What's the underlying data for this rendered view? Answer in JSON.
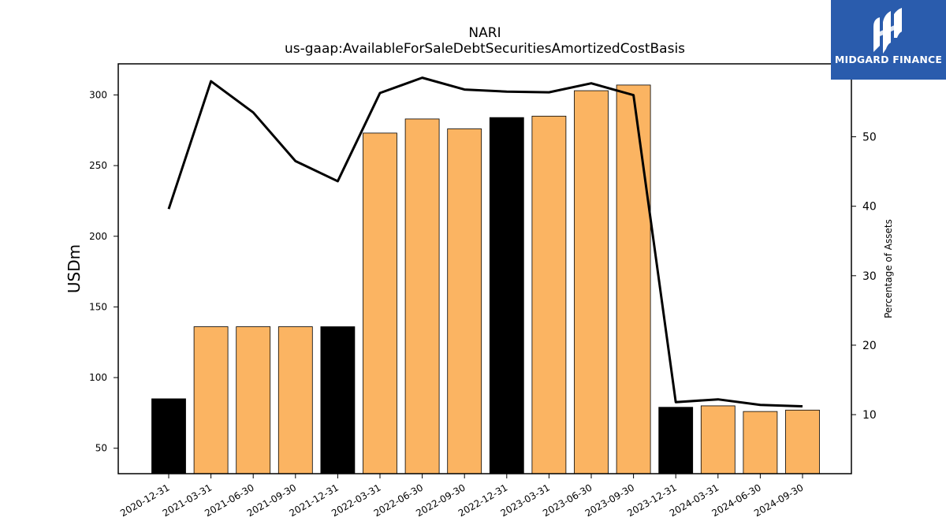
{
  "chart_data": {
    "type": "bar",
    "title": "NARI",
    "subtitle": "us-gaap:AvailableForSaleDebtSecuritiesAmortizedCostBasis",
    "ylabel": "USDm",
    "y2label": "Percentage of Assets",
    "ylim": [
      32,
      322
    ],
    "y2lim": [
      1.5,
      60.5
    ],
    "yticks": [
      50,
      100,
      150,
      200,
      250,
      300
    ],
    "y2ticks": [
      10,
      20,
      30,
      40,
      50
    ],
    "grid": false,
    "categories": [
      "2020-12-31",
      "2021-03-31",
      "2021-06-30",
      "2021-09-30",
      "2021-12-31",
      "2022-03-31",
      "2022-06-30",
      "2022-09-30",
      "2022-12-31",
      "2023-03-31",
      "2023-06-30",
      "2023-09-30",
      "2023-12-31",
      "2024-03-31",
      "2024-06-30",
      "2024-09-30"
    ],
    "series": [
      {
        "kind": "bar",
        "axis": "left",
        "values": [
          85,
          136,
          136,
          136,
          136,
          273,
          283,
          276,
          284,
          285,
          303,
          307,
          79,
          80,
          76,
          77
        ],
        "colors": [
          "#000000",
          "#fbb462",
          "#fbb462",
          "#fbb462",
          "#000000",
          "#fbb462",
          "#fbb462",
          "#fbb462",
          "#000000",
          "#fbb462",
          "#fbb462",
          "#fbb462",
          "#000000",
          "#fbb462",
          "#fbb462",
          "#fbb462"
        ]
      },
      {
        "kind": "line",
        "axis": "right",
        "color": "#000000",
        "values": [
          39.6,
          58.0,
          53.5,
          46.5,
          43.6,
          56.3,
          58.5,
          56.8,
          56.5,
          56.4,
          57.7,
          56.0,
          11.8,
          12.2,
          11.4,
          11.2
        ]
      }
    ]
  },
  "logo": {
    "text": "MIDGARD FINANCE",
    "background": "#2a5cad"
  }
}
